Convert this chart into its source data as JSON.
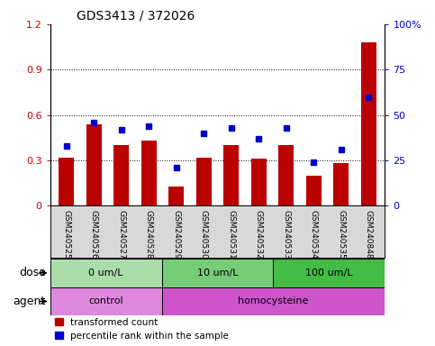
{
  "title": "GDS3413 / 372026",
  "samples": [
    "GSM240525",
    "GSM240526",
    "GSM240527",
    "GSM240528",
    "GSM240529",
    "GSM240530",
    "GSM240531",
    "GSM240532",
    "GSM240533",
    "GSM240534",
    "GSM240535",
    "GSM240848"
  ],
  "transformed_count": [
    0.32,
    0.54,
    0.4,
    0.43,
    0.13,
    0.32,
    0.4,
    0.31,
    0.4,
    0.2,
    0.28,
    1.08
  ],
  "percentile_rank_pct": [
    33,
    46,
    42,
    44,
    21,
    40,
    43,
    37,
    43,
    24,
    31,
    60
  ],
  "red_color": "#bb0000",
  "blue_color": "#0000cc",
  "bar_width": 0.55,
  "ylim_left": [
    0,
    1.2
  ],
  "ylim_right": [
    0,
    100
  ],
  "yticks_left": [
    0,
    0.3,
    0.6,
    0.9,
    1.2
  ],
  "yticks_right": [
    0,
    25,
    50,
    75,
    100
  ],
  "ytick_labels_left": [
    "0",
    "0.3",
    "0.6",
    "0.9",
    "1.2"
  ],
  "ytick_labels_right": [
    "0",
    "25",
    "50",
    "75",
    "100%"
  ],
  "dose_groups": [
    {
      "label": "0 um/L",
      "start": 0,
      "end": 4,
      "color": "#aaddaa"
    },
    {
      "label": "10 um/L",
      "start": 4,
      "end": 8,
      "color": "#77cc77"
    },
    {
      "label": "100 um/L",
      "start": 8,
      "end": 12,
      "color": "#44bb44"
    }
  ],
  "agent_groups": [
    {
      "label": "control",
      "start": 0,
      "end": 4,
      "color": "#dd88dd"
    },
    {
      "label": "homocysteine",
      "start": 4,
      "end": 12,
      "color": "#cc55cc"
    }
  ],
  "dose_label": "dose",
  "agent_label": "agent",
  "legend_red": "transformed count",
  "legend_blue": "percentile rank within the sample",
  "sample_bg_color": "#d8d8d8",
  "plot_bg": "#ffffff",
  "tick_label_color_left": "#cc0000",
  "tick_label_color_right": "#0000cc"
}
